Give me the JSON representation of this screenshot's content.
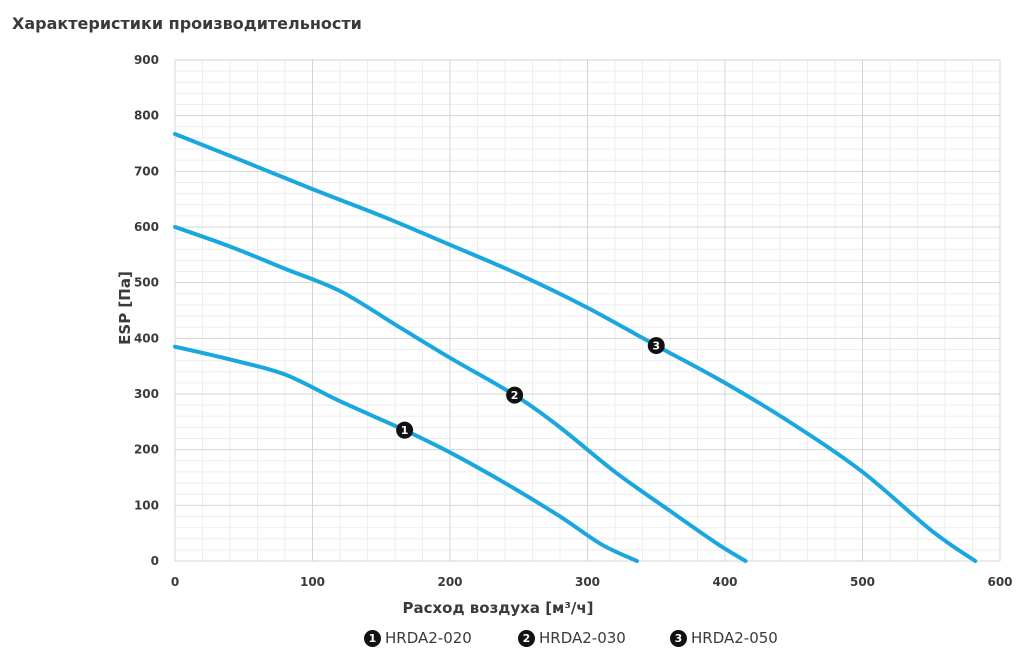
{
  "title": "Характеристики производительности",
  "chart_data": {
    "type": "line",
    "xlabel": "Расход воздуха [м³/ч]",
    "ylabel": "ESP [Па]",
    "xlim": [
      0,
      600
    ],
    "ylim": [
      0,
      900
    ],
    "x_ticks": [
      0,
      100,
      200,
      300,
      400,
      500,
      600
    ],
    "y_ticks": [
      0,
      100,
      200,
      300,
      400,
      500,
      600,
      700,
      800,
      900
    ],
    "grid": true,
    "legend_position": "bottom",
    "line_color": "#1aa7e0",
    "series": [
      {
        "name": "HRDA2-020",
        "marker": "1",
        "marker_point": [
          167,
          235
        ],
        "points": [
          [
            0,
            385
          ],
          [
            40,
            362
          ],
          [
            80,
            335
          ],
          [
            120,
            287
          ],
          [
            167,
            235
          ],
          [
            200,
            195
          ],
          [
            240,
            140
          ],
          [
            280,
            80
          ],
          [
            310,
            30
          ],
          [
            336,
            0
          ]
        ]
      },
      {
        "name": "HRDA2-030",
        "marker": "2",
        "marker_point": [
          247,
          298
        ],
        "points": [
          [
            0,
            600
          ],
          [
            40,
            565
          ],
          [
            80,
            525
          ],
          [
            120,
            485
          ],
          [
            160,
            425
          ],
          [
            200,
            365
          ],
          [
            247,
            298
          ],
          [
            280,
            240
          ],
          [
            320,
            160
          ],
          [
            360,
            90
          ],
          [
            395,
            30
          ],
          [
            415,
            0
          ]
        ]
      },
      {
        "name": "HRDA2-050",
        "marker": "3",
        "marker_point": [
          350,
          387
        ],
        "points": [
          [
            0,
            767
          ],
          [
            50,
            718
          ],
          [
            100,
            668
          ],
          [
            150,
            620
          ],
          [
            200,
            568
          ],
          [
            250,
            515
          ],
          [
            300,
            455
          ],
          [
            350,
            387
          ],
          [
            400,
            320
          ],
          [
            450,
            245
          ],
          [
            500,
            160
          ],
          [
            550,
            55
          ],
          [
            582,
            0
          ]
        ]
      }
    ]
  }
}
